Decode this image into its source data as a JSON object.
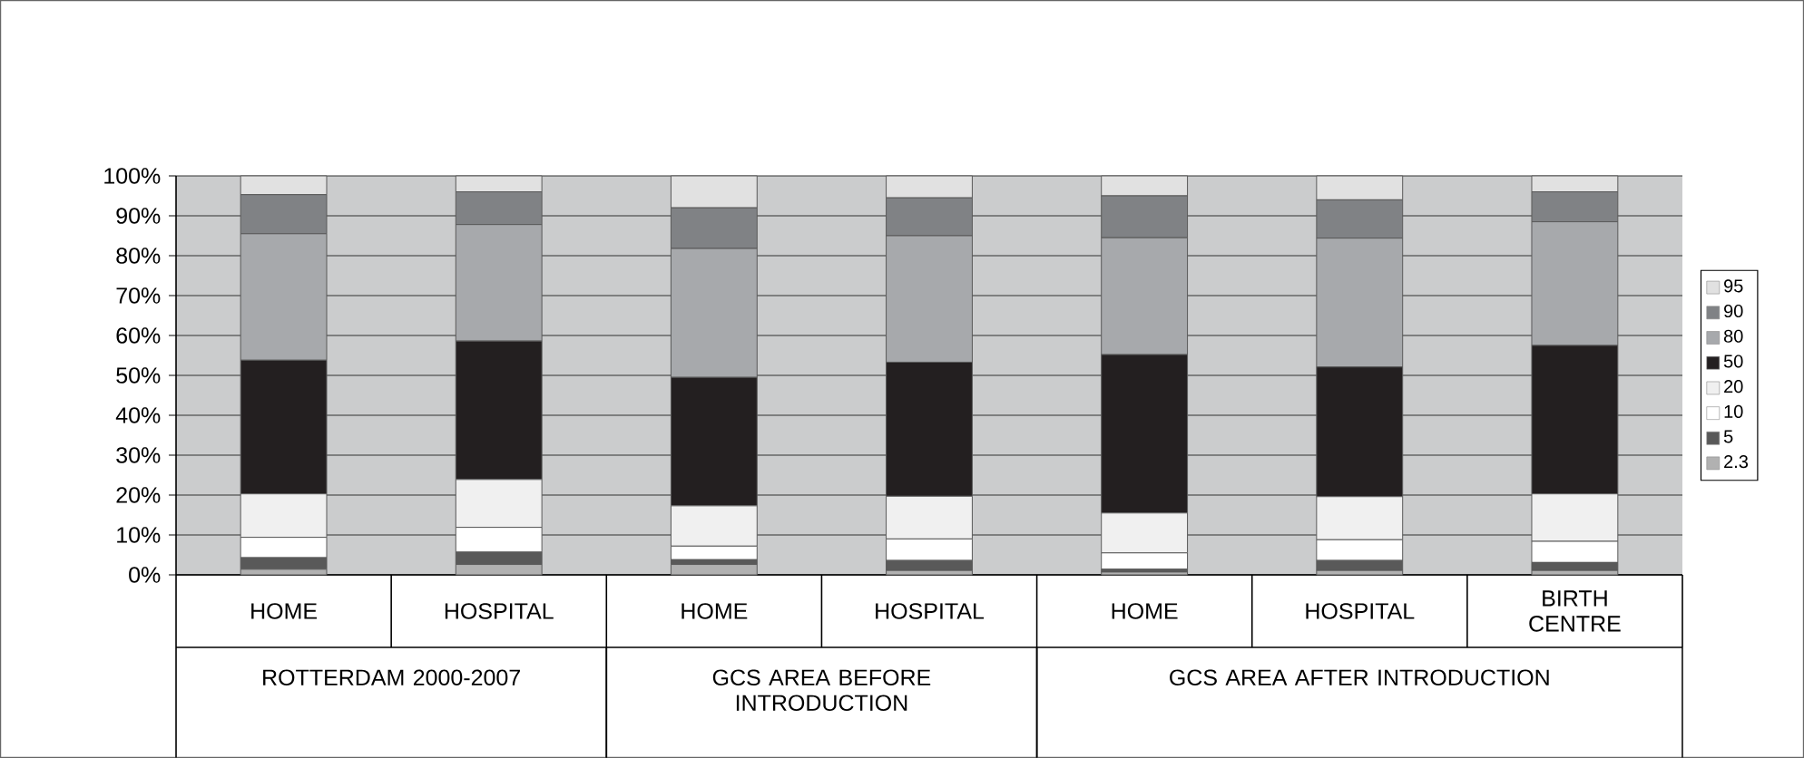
{
  "chart_data": {
    "type": "bar",
    "stacked": true,
    "categories": [
      "HOME",
      "HOSPITAL",
      "HOME",
      "HOSPITAL",
      "HOME",
      "HOSPITAL",
      "BIRTH CENTRE"
    ],
    "annotations": [
      "ROTTERDAM 2000-2007",
      "GCS AREA BEFORE INTRODUCTION",
      "GCS AREA AFTER INTRODUCTION"
    ],
    "series": [
      {
        "name": "2.3",
        "color": "#b1b1b1",
        "values": [
          1.4,
          2.6,
          2.6,
          1.1,
          0.7,
          1.1,
          1.1
        ]
      },
      {
        "name": "5",
        "color": "#595959",
        "values": [
          2.9,
          3.1,
          1.2,
          2.5,
          0.7,
          2.5,
          2.0
        ]
      },
      {
        "name": "10",
        "color": "#ffffff",
        "values": [
          5.1,
          6.2,
          3.4,
          5.4,
          4.1,
          5.2,
          5.3
        ]
      },
      {
        "name": "20",
        "color": "#f0f0f0",
        "values": [
          10.9,
          12.0,
          10.1,
          10.7,
          10.0,
          10.8,
          11.9
        ]
      },
      {
        "name": "50",
        "color": "#231f20",
        "values": [
          33.5,
          34.7,
          32.2,
          33.6,
          39.7,
          32.5,
          37.2
        ]
      },
      {
        "name": "80",
        "color": "#a7a9ac",
        "values": [
          31.7,
          29.2,
          32.3,
          31.7,
          29.3,
          32.3,
          31.0
        ]
      },
      {
        "name": "90",
        "color": "#808285",
        "values": [
          9.8,
          8.2,
          10.2,
          9.5,
          10.5,
          9.6,
          7.5
        ]
      },
      {
        "name": "95",
        "color": "#e1e1e1",
        "values": [
          4.7,
          4.0,
          8.0,
          5.5,
          5.0,
          6.0,
          4.0
        ]
      }
    ],
    "ylim": [
      0,
      100
    ],
    "yticks": [
      {
        "value": 0,
        "label": "0%"
      },
      {
        "value": 10,
        "label": "10%"
      },
      {
        "value": 20,
        "label": "20%"
      },
      {
        "value": 30,
        "label": "30%"
      },
      {
        "value": 40,
        "label": "40%"
      },
      {
        "value": 50,
        "label": "50%"
      },
      {
        "value": 60,
        "label": "60%"
      },
      {
        "value": 70,
        "label": "70%"
      },
      {
        "value": 80,
        "label": "80%"
      },
      {
        "value": 90,
        "label": "90%"
      },
      {
        "value": 100,
        "label": "100%"
      }
    ],
    "grid": "y",
    "legend": "right"
  }
}
